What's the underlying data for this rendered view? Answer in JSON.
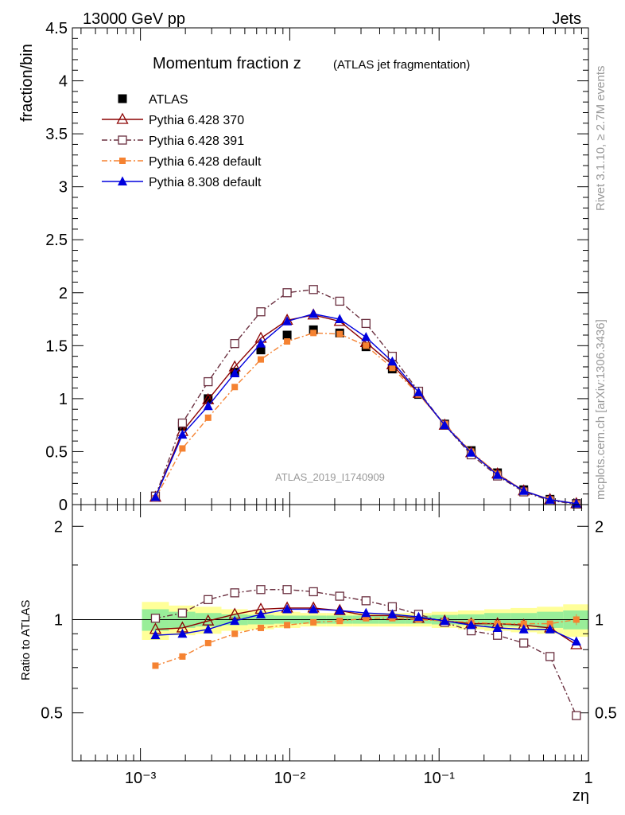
{
  "header": {
    "energy_label": "13000 GeV pp",
    "process_label": "Jets"
  },
  "side_labels": {
    "rivet": "Rivet 3.1.10, ≥ 2.7M events",
    "mcplots": "mcplots.cern.ch [arXiv:1306.3436]"
  },
  "watermark": "ATLAS_2019_I1740909",
  "chart_data": [
    {
      "type": "line",
      "title": "Momentum fraction z",
      "subtitle": "(ATLAS jet fragmentation)",
      "ylabel": "fraction/bin",
      "xlabel": "zη",
      "xscale": "log",
      "xlim": [
        0.00035,
        1.0
      ],
      "ylim": [
        0,
        4.5
      ],
      "yticks": [
        0,
        0.5,
        1,
        1.5,
        2,
        2.5,
        3,
        3.5,
        4,
        4.5
      ],
      "ytick_labels": [
        "0",
        "0.5",
        "1",
        "1.5",
        "2",
        "2.5",
        "3",
        "3.5",
        "4",
        "4.5"
      ],
      "legend_position": "top-left",
      "x": [
        0.00126,
        0.00191,
        0.00284,
        0.00428,
        0.0064,
        0.0096,
        0.0144,
        0.0216,
        0.0324,
        0.0486,
        0.0729,
        0.109,
        0.164,
        0.246,
        0.369,
        0.553,
        0.83
      ],
      "series": [
        {
          "name": "ATLAS",
          "color": "#000000",
          "marker": "filled-square",
          "line": "none",
          "values": [
            0.08,
            0.74,
            1.0,
            1.25,
            1.46,
            1.6,
            1.65,
            1.62,
            1.49,
            1.28,
            1.04,
            0.76,
            0.51,
            0.3,
            0.14,
            0.05,
            0.01
          ]
        },
        {
          "name": "Pythia 6.428 370",
          "color": "#8b0000",
          "marker": "open-triangle",
          "line": "solid",
          "values": [
            0.07,
            0.69,
            0.99,
            1.3,
            1.57,
            1.74,
            1.79,
            1.73,
            1.53,
            1.32,
            1.05,
            0.75,
            0.49,
            0.29,
            0.13,
            0.048,
            0.009
          ]
        },
        {
          "name": "Pythia 6.428 391",
          "color": "#6b3040",
          "marker": "open-square",
          "line": "dashdot",
          "values": [
            0.08,
            0.77,
            1.16,
            1.52,
            1.82,
            2.0,
            2.03,
            1.92,
            1.71,
            1.4,
            1.07,
            0.75,
            0.47,
            0.27,
            0.12,
            0.038,
            0.005
          ]
        },
        {
          "name": "Pythia 6.428 default",
          "color": "#f58231",
          "marker": "filled-square-small",
          "line": "dashdot",
          "values": [
            0.06,
            0.53,
            0.82,
            1.11,
            1.37,
            1.54,
            1.62,
            1.61,
            1.5,
            1.29,
            1.04,
            0.76,
            0.5,
            0.29,
            0.13,
            0.048,
            0.009
          ]
        },
        {
          "name": "Pythia 8.308 default",
          "color": "#0000dd",
          "marker": "filled-triangle",
          "line": "solid",
          "values": [
            0.07,
            0.66,
            0.93,
            1.24,
            1.52,
            1.73,
            1.8,
            1.75,
            1.58,
            1.35,
            1.06,
            0.75,
            0.49,
            0.28,
            0.13,
            0.046,
            0.009
          ]
        }
      ]
    },
    {
      "type": "line",
      "ylabel": "Ratio to ATLAS",
      "xlabel": "zη",
      "xscale": "log",
      "xlim": [
        0.00035,
        1.0
      ],
      "ylim": [
        0.35,
        2.35
      ],
      "yscale": "log",
      "yticks": [
        0.5,
        1,
        2
      ],
      "ytick_labels": [
        "0.5",
        "1",
        "2"
      ],
      "xticks": [
        0.001,
        0.01,
        0.1,
        1
      ],
      "xtick_labels": [
        "10⁻³",
        "10⁻²",
        "10⁻¹",
        "1"
      ],
      "x": [
        0.00126,
        0.00191,
        0.00284,
        0.00428,
        0.0064,
        0.0096,
        0.0144,
        0.0216,
        0.0324,
        0.0486,
        0.0729,
        0.109,
        0.164,
        0.246,
        0.369,
        0.553,
        0.83
      ],
      "band_yellow": [
        0.14,
        0.11,
        0.1,
        0.08,
        0.07,
        0.06,
        0.05,
        0.05,
        0.05,
        0.05,
        0.05,
        0.06,
        0.07,
        0.08,
        0.09,
        0.1,
        0.12
      ],
      "band_green": [
        0.08,
        0.06,
        0.05,
        0.04,
        0.035,
        0.03,
        0.03,
        0.03,
        0.03,
        0.03,
        0.03,
        0.035,
        0.04,
        0.05,
        0.05,
        0.06,
        0.07
      ],
      "series": [
        {
          "name": "Pythia 6.428 370",
          "color": "#8b0000",
          "marker": "open-triangle",
          "line": "solid",
          "values": [
            0.93,
            0.94,
            0.99,
            1.04,
            1.08,
            1.09,
            1.09,
            1.07,
            1.03,
            1.03,
            1.01,
            0.99,
            0.97,
            0.97,
            0.96,
            0.94,
            0.83
          ]
        },
        {
          "name": "Pythia 6.428 391",
          "color": "#6b3040",
          "marker": "open-square",
          "line": "dashdot",
          "values": [
            1.01,
            1.05,
            1.16,
            1.22,
            1.25,
            1.25,
            1.23,
            1.19,
            1.15,
            1.1,
            1.04,
            0.98,
            0.92,
            0.89,
            0.84,
            0.76,
            0.49
          ]
        },
        {
          "name": "Pythia 6.428 default",
          "color": "#f58231",
          "marker": "filled-square-small",
          "line": "dashdot",
          "values": [
            0.71,
            0.76,
            0.84,
            0.9,
            0.94,
            0.96,
            0.98,
            0.99,
            1.01,
            1.01,
            1.0,
            0.99,
            0.98,
            0.97,
            0.97,
            0.97,
            1.0
          ]
        },
        {
          "name": "Pythia 8.308 default",
          "color": "#0000dd",
          "marker": "filled-triangle",
          "line": "solid",
          "values": [
            0.89,
            0.9,
            0.93,
            0.99,
            1.04,
            1.08,
            1.08,
            1.07,
            1.05,
            1.04,
            1.02,
            0.99,
            0.96,
            0.94,
            0.93,
            0.93,
            0.85
          ]
        }
      ]
    }
  ]
}
